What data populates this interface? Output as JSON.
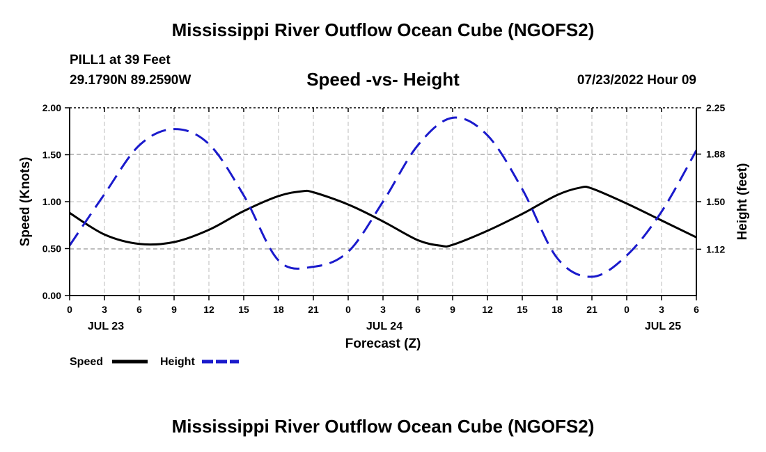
{
  "header": {
    "title": "Mississippi River Outflow Ocean Cube (NGOFS2)",
    "station": "PILL1 at 39 Feet",
    "coords": "29.1790N  89.2590W",
    "subtitle": "Speed -vs- Height",
    "datetime": "07/23/2022 Hour 09"
  },
  "footer": {
    "title": "Mississippi River Outflow Ocean Cube (NGOFS2)"
  },
  "chart_data": {
    "type": "line",
    "title": "Speed -vs- Height",
    "xlabel": "Forecast (Z)",
    "ylabel": "Speed (Knots)",
    "y2label": "Height (feet)",
    "x_hours": [
      0,
      3,
      6,
      9,
      12,
      15,
      18,
      21,
      24,
      27,
      30,
      33,
      36,
      39,
      42,
      45,
      48,
      51,
      54
    ],
    "x_tick_labels": [
      "0",
      "3",
      "6",
      "9",
      "12",
      "15",
      "18",
      "21",
      "0",
      "3",
      "6",
      "9",
      "12",
      "15",
      "18",
      "21",
      "0",
      "3",
      "6"
    ],
    "date_labels": [
      {
        "hour": 3,
        "label": "JUL 23"
      },
      {
        "hour": 27,
        "label": "JUL 24"
      },
      {
        "hour": 51,
        "label": "JUL 25"
      }
    ],
    "xlim": [
      0,
      54
    ],
    "ylim": [
      0,
      2.0
    ],
    "y_ticks": [
      "0.00",
      "0.50",
      "1.00",
      "1.50",
      "2.00"
    ],
    "y2lim": [
      0.75,
      2.25
    ],
    "y2_ticks": [
      "1.12",
      "1.50",
      "1.88",
      "2.25"
    ],
    "grid": true,
    "legend_position": "bottom-left",
    "series": [
      {
        "name": "Speed",
        "axis": "left",
        "color": "#000000",
        "style": "solid",
        "x": [
          0,
          3,
          6,
          9,
          12,
          15,
          18,
          20,
          21,
          24,
          27,
          30,
          32,
          33,
          36,
          39,
          42,
          44,
          45,
          48,
          51,
          54
        ],
        "values": [
          0.88,
          0.65,
          0.55,
          0.57,
          0.7,
          0.9,
          1.06,
          1.11,
          1.1,
          0.97,
          0.79,
          0.59,
          0.53,
          0.54,
          0.69,
          0.87,
          1.07,
          1.15,
          1.14,
          0.98,
          0.8,
          0.62
        ]
      },
      {
        "name": "Height",
        "axis": "right",
        "color": "#1a1acc",
        "style": "dashed",
        "x": [
          0,
          3,
          6,
          9,
          12,
          15,
          18,
          21,
          24,
          27,
          30,
          33,
          36,
          39,
          42,
          45,
          48,
          51,
          54
        ],
        "values": [
          1.15,
          1.56,
          1.95,
          2.08,
          1.96,
          1.55,
          1.03,
          0.98,
          1.1,
          1.5,
          1.95,
          2.17,
          2.03,
          1.6,
          1.05,
          0.9,
          1.07,
          1.42,
          1.91
        ]
      }
    ]
  }
}
